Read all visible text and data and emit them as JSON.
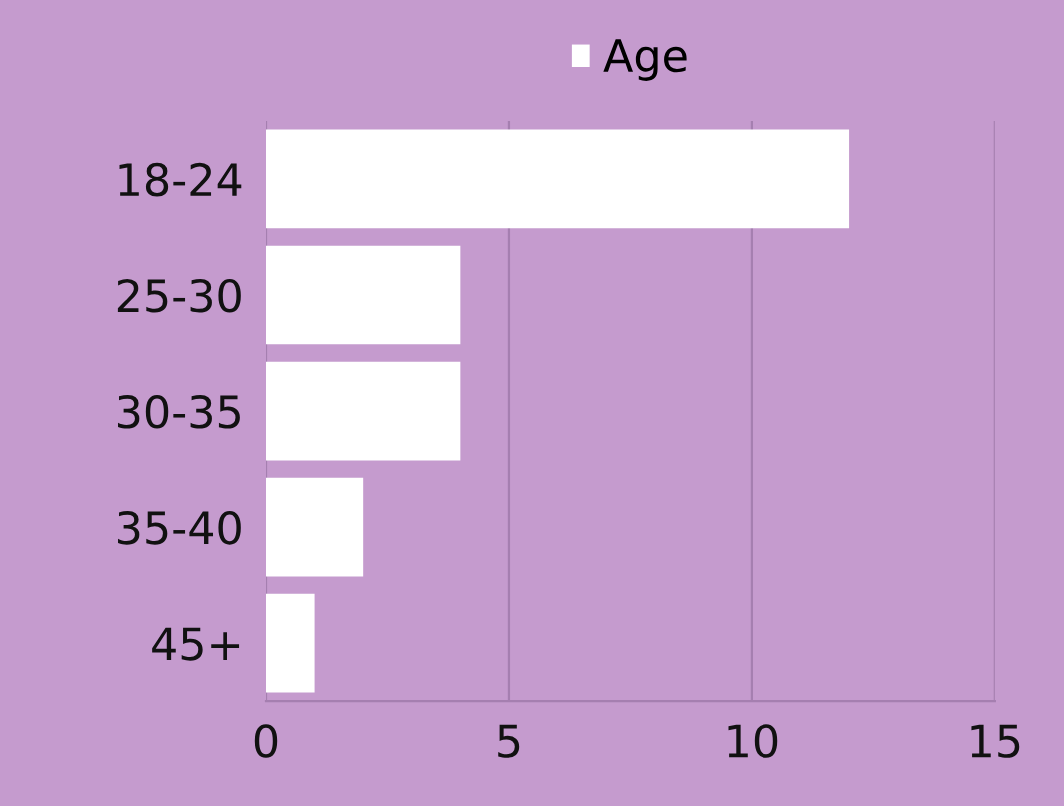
{
  "chart_data": {
    "type": "bar",
    "orientation": "horizontal",
    "categories": [
      "18-24",
      "25-30",
      "30-35",
      "35-40",
      "45+"
    ],
    "series": [
      {
        "name": "Age",
        "color": "#ffffff",
        "values": [
          12,
          4,
          4,
          2,
          1
        ]
      }
    ],
    "xlim": [
      0,
      15
    ],
    "xticks": [
      0,
      5,
      10,
      15
    ],
    "grid": "x",
    "legend": "top"
  }
}
